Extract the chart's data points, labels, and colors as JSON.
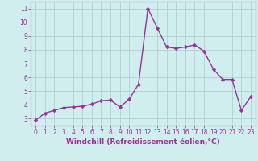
{
  "x": [
    0,
    1,
    2,
    3,
    4,
    5,
    6,
    7,
    8,
    9,
    10,
    11,
    12,
    13,
    14,
    15,
    16,
    17,
    18,
    19,
    20,
    21,
    22,
    23
  ],
  "y": [
    2.9,
    3.4,
    3.6,
    3.8,
    3.85,
    3.9,
    4.05,
    4.3,
    4.35,
    3.85,
    4.4,
    5.5,
    11.0,
    9.6,
    8.2,
    8.1,
    8.2,
    8.35,
    7.9,
    6.6,
    5.85,
    5.85,
    3.6,
    4.6
  ],
  "line_color": "#993399",
  "marker": "D",
  "marker_size": 2.2,
  "bg_color": "#d0eeee",
  "grid_color": "#aacccc",
  "xlabel": "Windchill (Refroidissement éolien,°C)",
  "ylim": [
    2.5,
    11.5
  ],
  "xlim": [
    -0.5,
    23.5
  ],
  "yticks": [
    3,
    4,
    5,
    6,
    7,
    8,
    9,
    10,
    11
  ],
  "xticks": [
    0,
    1,
    2,
    3,
    4,
    5,
    6,
    7,
    8,
    9,
    10,
    11,
    12,
    13,
    14,
    15,
    16,
    17,
    18,
    19,
    20,
    21,
    22,
    23
  ],
  "tick_fontsize": 5.5,
  "xlabel_fontsize": 6.5,
  "line_width": 1.0,
  "text_color": "#993399"
}
